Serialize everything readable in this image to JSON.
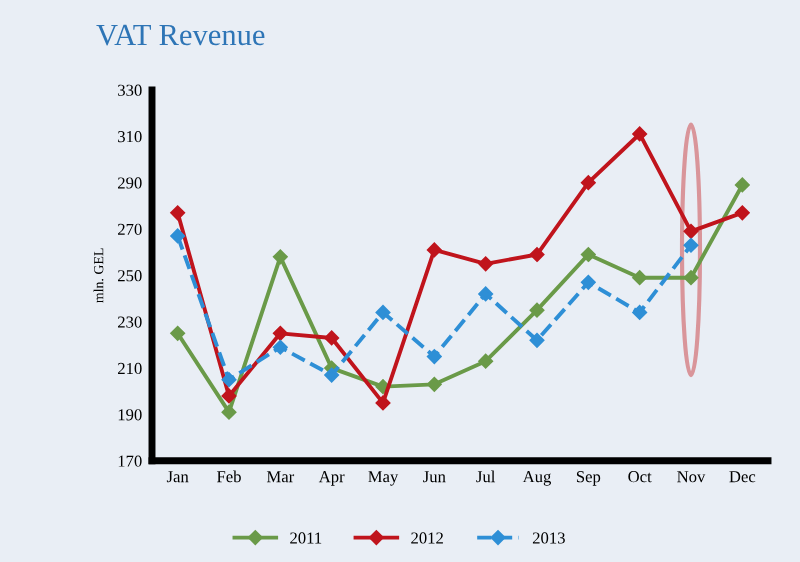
{
  "chart_data": {
    "type": "line",
    "title": "VAT Revenue",
    "ylabel": "mln. GEL",
    "categories": [
      "Jan",
      "Feb",
      "Mar",
      "Apr",
      "May",
      "Jun",
      "Jul",
      "Aug",
      "Sep",
      "Oct",
      "Nov",
      "Dec"
    ],
    "series": [
      {
        "name": "2011",
        "color": "#6a9a48",
        "values": [
          225,
          191,
          258,
          210,
          202,
          203,
          213,
          235,
          259,
          249,
          249,
          289
        ]
      },
      {
        "name": "2012",
        "color": "#c0141c",
        "values": [
          277,
          198,
          225,
          223,
          195,
          261,
          255,
          259,
          290,
          311,
          269,
          277
        ]
      },
      {
        "name": "2013",
        "color": "#2e8fd6",
        "line_style": "dashed",
        "values": [
          267,
          205,
          219,
          207,
          234,
          215,
          242,
          222,
          247,
          234,
          263,
          null
        ]
      }
    ],
    "ylim": [
      170,
      330
    ],
    "yticks": [
      170,
      190,
      210,
      230,
      250,
      270,
      290,
      310,
      330
    ],
    "grid": false,
    "legend": "bottom",
    "marker": "diamond",
    "line_style": "solid"
  }
}
